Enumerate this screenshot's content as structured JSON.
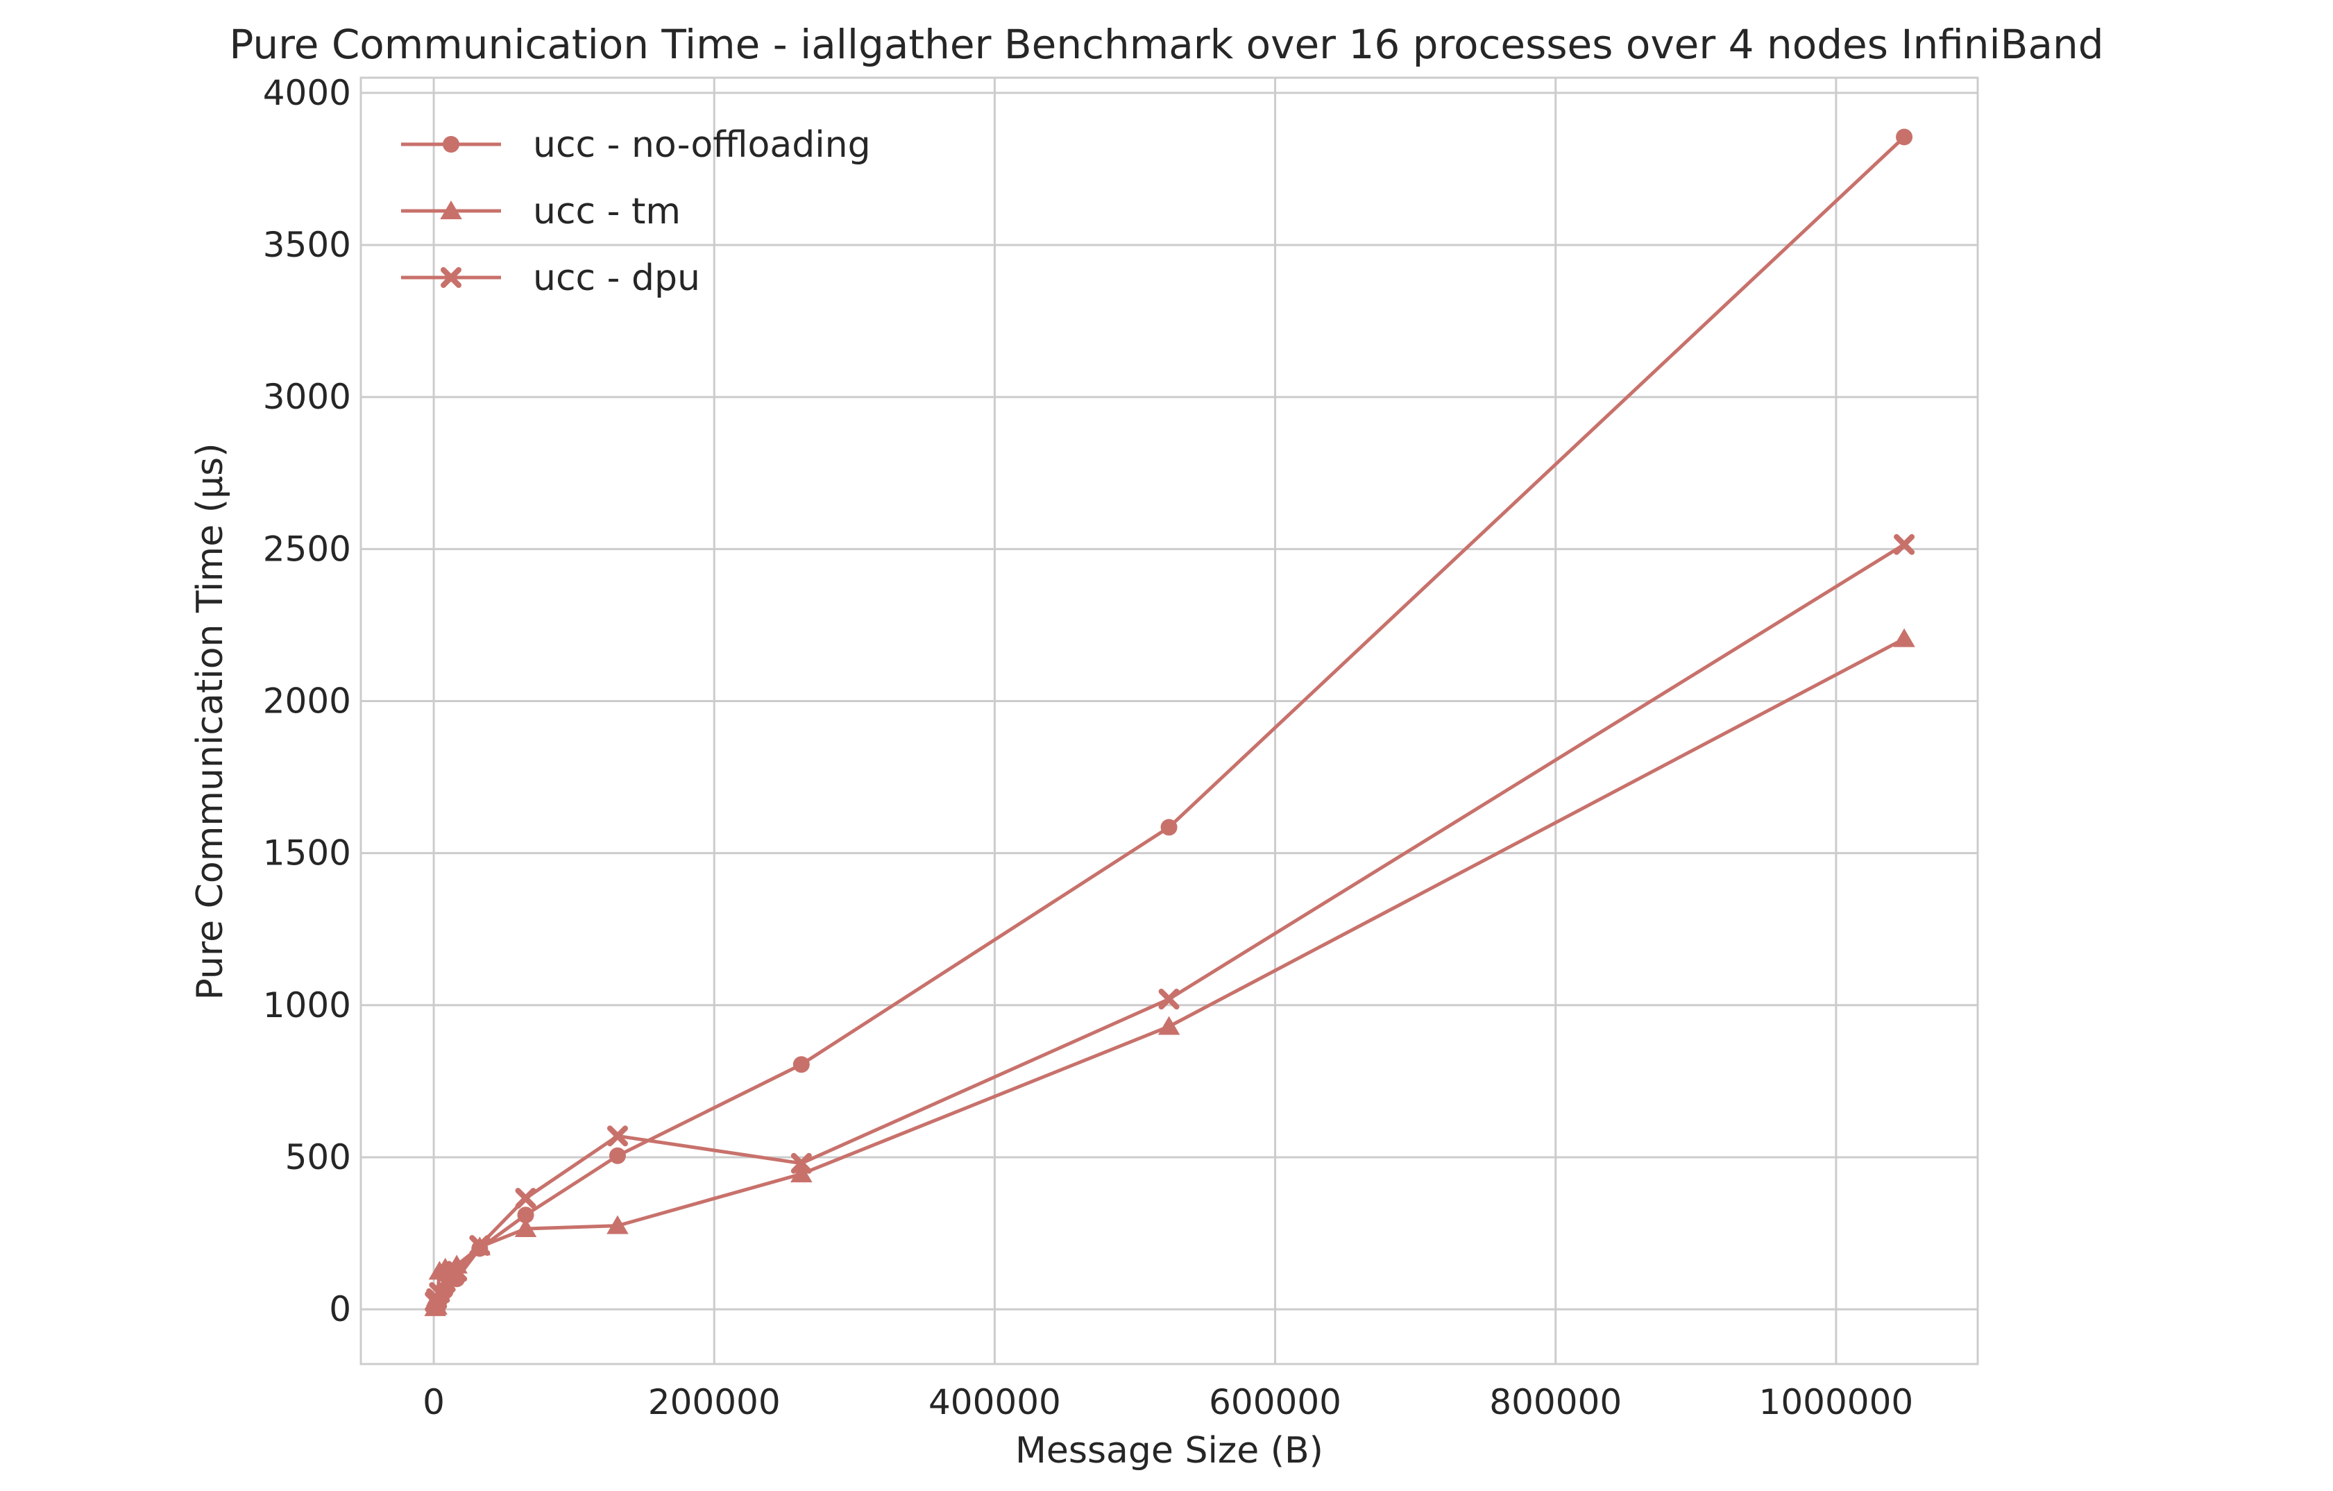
{
  "chart_data": {
    "type": "line",
    "title": "Pure Communication Time - iallgather Benchmark over 16 processes over 4 nodes InfiniBand",
    "xlabel": "Message Size (B)",
    "ylabel": "Pure Communication Time (μs)",
    "xlim": [
      -52000,
      1101000
    ],
    "ylim": [
      -180,
      4050
    ],
    "x_ticks": [
      0,
      200000,
      400000,
      600000,
      800000,
      1000000
    ],
    "x_tick_labels": [
      "0",
      "200000",
      "400000",
      "600000",
      "800000",
      "1000000"
    ],
    "y_ticks": [
      0,
      500,
      1000,
      1500,
      2000,
      2500,
      3000,
      3500,
      4000
    ],
    "y_tick_labels": [
      "0",
      "500",
      "1000",
      "1500",
      "2000",
      "2500",
      "3000",
      "3500",
      "4000"
    ],
    "grid": true,
    "legend_position": "top-left",
    "color": "#c8716b",
    "series": [
      {
        "name": "ucc - no-offloading",
        "marker": "circle",
        "x": [
          1024,
          2048,
          4096,
          8192,
          16384,
          32768,
          65536,
          131072,
          262144,
          524288,
          1048576
        ],
        "y": [
          10,
          18,
          30,
          60,
          100,
          200,
          310,
          505,
          805,
          1585,
          3855
        ]
      },
      {
        "name": "ucc - tm",
        "marker": "triangle",
        "x": [
          1024,
          2048,
          4096,
          8192,
          16384,
          32768,
          65536,
          131072,
          262144,
          524288,
          1048576
        ],
        "y": [
          5,
          10,
          125,
          135,
          145,
          205,
          265,
          275,
          445,
          930,
          2205
        ]
      },
      {
        "name": "ucc - dpu",
        "marker": "x",
        "x": [
          1024,
          2048,
          4096,
          8192,
          16384,
          32768,
          65536,
          131072,
          262144,
          524288,
          1048576
        ],
        "y": [
          25,
          35,
          55,
          90,
          125,
          210,
          365,
          570,
          480,
          1020,
          2515
        ]
      }
    ]
  }
}
